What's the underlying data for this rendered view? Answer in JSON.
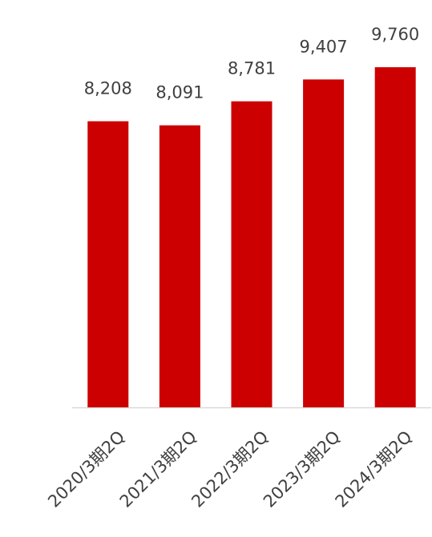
{
  "chart_data": {
    "type": "bar",
    "title": "",
    "xlabel": "",
    "ylabel": "",
    "categories": [
      "2020/3期2Q",
      "2021/3期2Q",
      "2022/3期2Q",
      "2023/3期2Q",
      "2024/3期2Q"
    ],
    "values": [
      8208,
      8091,
      8781,
      9407,
      9760
    ],
    "value_labels": [
      "8,208",
      "8,091",
      "8,781",
      "9,407",
      "9,760"
    ],
    "ylim": [
      0,
      10000
    ],
    "grid": false,
    "legend": "none",
    "bar_color": "#cc0000",
    "axis_color": "#d9d9d9",
    "label_color": "#404040"
  }
}
